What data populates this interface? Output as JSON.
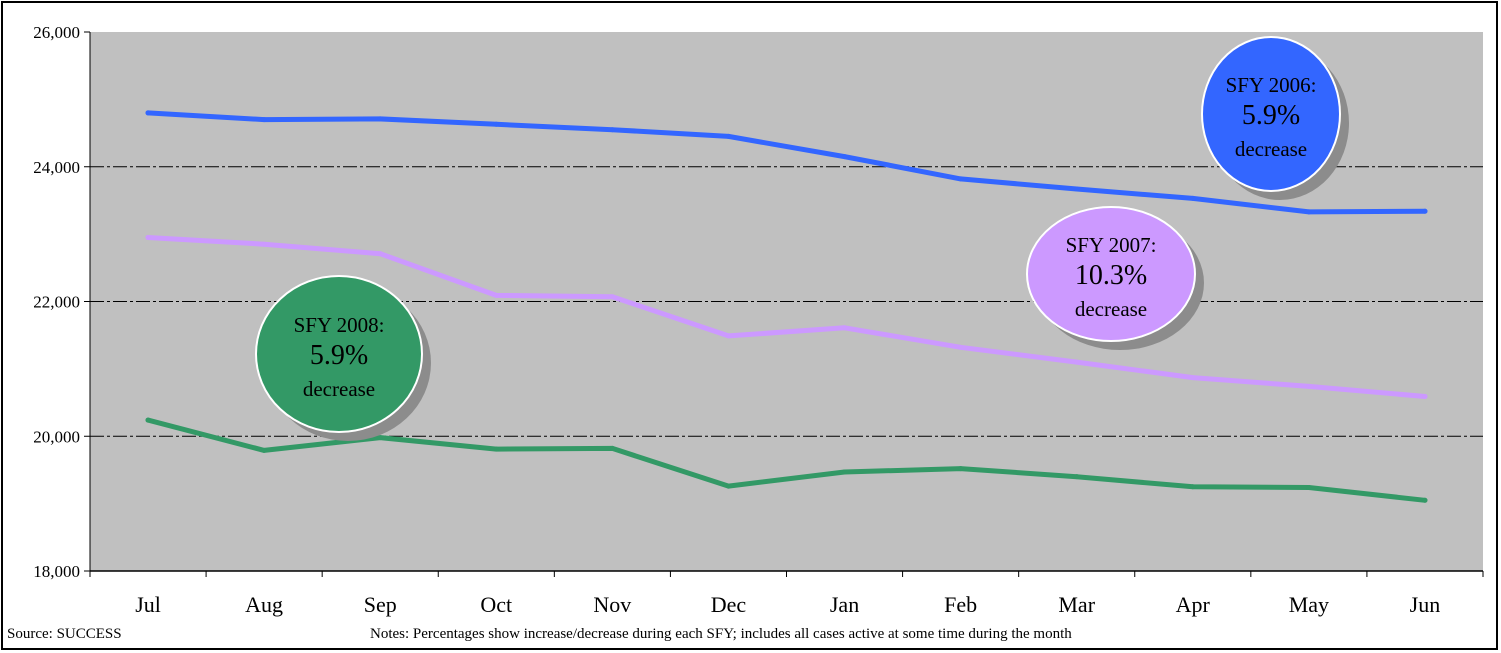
{
  "chart_data": {
    "type": "line",
    "title": "",
    "xlabel": "",
    "ylabel": "",
    "categories": [
      "Jul",
      "Aug",
      "Sep",
      "Oct",
      "Nov",
      "Dec",
      "Jan",
      "Feb",
      "Mar",
      "Apr",
      "May",
      "Jun"
    ],
    "ylim": [
      18000,
      26000
    ],
    "yticks": [
      18000,
      20000,
      22000,
      24000,
      26000
    ],
    "ytick_labels": [
      "18,000",
      "20,000",
      "22,000",
      "24,000",
      "26,000"
    ],
    "grid": true,
    "plot_background": "#c0c0c0",
    "series": [
      {
        "key": "sfy2006",
        "color": "#3366ff",
        "values": [
          24800,
          24700,
          24710,
          24630,
          24550,
          24450,
          24150,
          23820,
          23670,
          23530,
          23330,
          23340
        ]
      },
      {
        "key": "sfy2007",
        "color": "#cc99ff",
        "values": [
          22950,
          22850,
          22710,
          22090,
          22070,
          21490,
          21610,
          21320,
          21100,
          20870,
          20740,
          20590
        ]
      },
      {
        "key": "sfy2008",
        "color": "#339966",
        "values": [
          20240,
          19790,
          19980,
          19810,
          19820,
          19260,
          19470,
          19520,
          19400,
          19250,
          19240,
          19050
        ]
      }
    ],
    "annotations": [
      {
        "key": "sfy2006",
        "line1": "SFY 2006:",
        "line2": "5.9%",
        "line3": "decrease",
        "fill": "#3366ff",
        "text_color": "#000000"
      },
      {
        "key": "sfy2007",
        "line1": "SFY 2007:",
        "line2": "10.3%",
        "line3": "decrease",
        "fill": "#cc99ff",
        "text_color": "#000000"
      },
      {
        "key": "sfy2008",
        "line1": "SFY 2008:",
        "line2": "5.9%",
        "line3": "decrease",
        "fill": "#339966",
        "text_color": "#000000"
      }
    ]
  },
  "footer": {
    "source": "Source: SUCCESS",
    "notes": "Notes: Percentages show increase/decrease during each SFY;  includes all cases active at some time during the month"
  }
}
